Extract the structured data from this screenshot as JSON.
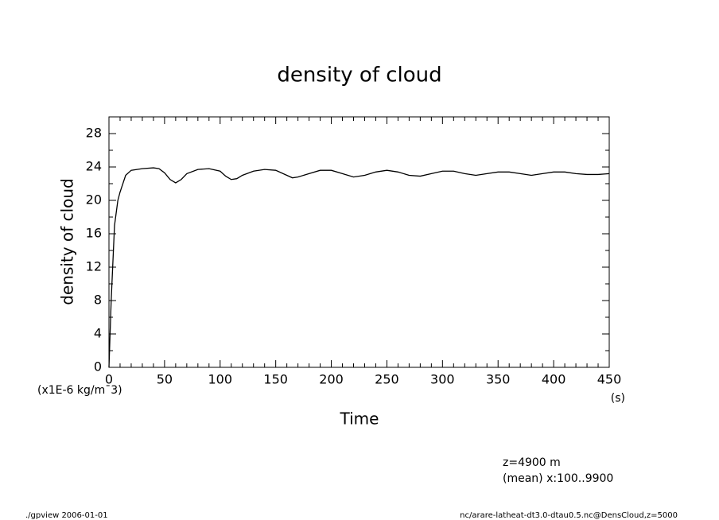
{
  "chart_data": {
    "type": "line",
    "title": "density of cloud",
    "ylabel": "density of cloud",
    "yunits": "(x1E-6 kg/m¯3)",
    "xlabel": "Time",
    "xunits": "(s)",
    "annotations": [
      "z=4900 m",
      "(mean) x:100..9900"
    ],
    "footer_left": "./gpview  2006-01-01",
    "footer_right": "nc/arare-latheat-dt3.0-dtau0.5.nc@DensCloud,z=5000",
    "x": [
      0,
      2,
      5,
      8,
      10,
      15,
      20,
      30,
      40,
      45,
      50,
      55,
      60,
      65,
      70,
      80,
      90,
      100,
      105,
      110,
      115,
      120,
      130,
      140,
      150,
      160,
      165,
      170,
      180,
      190,
      200,
      210,
      220,
      230,
      240,
      250,
      260,
      270,
      280,
      290,
      300,
      310,
      320,
      330,
      340,
      350,
      360,
      370,
      380,
      390,
      400,
      410,
      420,
      430,
      440,
      450
    ],
    "series": [
      {
        "color": "#000000",
        "values": [
          0,
          8,
          17,
          20,
          21,
          23,
          23.6,
          23.8,
          23.9,
          23.8,
          23.3,
          22.5,
          22.1,
          22.5,
          23.2,
          23.7,
          23.8,
          23.5,
          22.9,
          22.5,
          22.6,
          23.0,
          23.5,
          23.7,
          23.6,
          23.0,
          22.7,
          22.8,
          23.2,
          23.6,
          23.6,
          23.2,
          22.8,
          23.0,
          23.4,
          23.6,
          23.4,
          23.0,
          22.9,
          23.2,
          23.5,
          23.5,
          23.2,
          23.0,
          23.2,
          23.4,
          23.4,
          23.2,
          23.0,
          23.2,
          23.4,
          23.4,
          23.2,
          23.1,
          23.1,
          23.2
        ]
      }
    ],
    "xlim": [
      0,
      450
    ],
    "ylim": [
      0,
      30
    ],
    "xticks": [
      0,
      50,
      100,
      150,
      200,
      250,
      300,
      350,
      400,
      450
    ],
    "yticks": [
      0,
      4,
      8,
      12,
      16,
      20,
      24,
      28
    ],
    "xminorticks": [
      10,
      20,
      30,
      40,
      60,
      70,
      80,
      90,
      110,
      120,
      130,
      140,
      160,
      170,
      180,
      190,
      210,
      220,
      230,
      240,
      260,
      270,
      280,
      290,
      310,
      320,
      330,
      340,
      360,
      370,
      380,
      390,
      410,
      420,
      430,
      440
    ],
    "yminorticks": [
      2,
      6,
      10,
      14,
      18,
      22,
      26,
      30
    ]
  }
}
